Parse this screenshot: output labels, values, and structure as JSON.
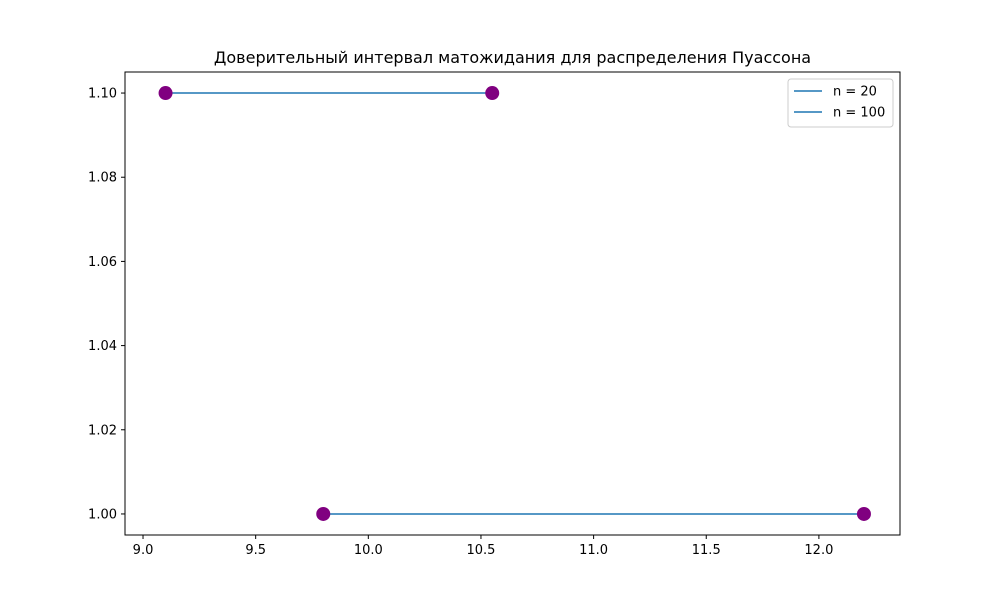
{
  "chart_data": {
    "type": "line",
    "title": "Доверительный интервал матожидания для распределения Пуассона",
    "xlabel": "",
    "ylabel": "",
    "xlim": [
      8.92,
      12.36
    ],
    "ylim": [
      0.995,
      1.105
    ],
    "xticks": [
      "9.0",
      "9.5",
      "10.0",
      "10.5",
      "11.0",
      "11.5",
      "12.0"
    ],
    "yticks": [
      "1.00",
      "1.02",
      "1.04",
      "1.06",
      "1.08",
      "1.10"
    ],
    "grid": false,
    "legend_position": "top-right",
    "series": [
      {
        "name": "n = 20",
        "color": "#1f77b4",
        "marker_color": "#800080",
        "x": [
          9.1,
          10.55
        ],
        "y": [
          1.1,
          1.1
        ]
      },
      {
        "name": "n = 100",
        "color": "#1f77b4",
        "marker_color": "#800080",
        "x": [
          9.8,
          12.2
        ],
        "y": [
          1.0,
          1.0
        ]
      }
    ]
  }
}
